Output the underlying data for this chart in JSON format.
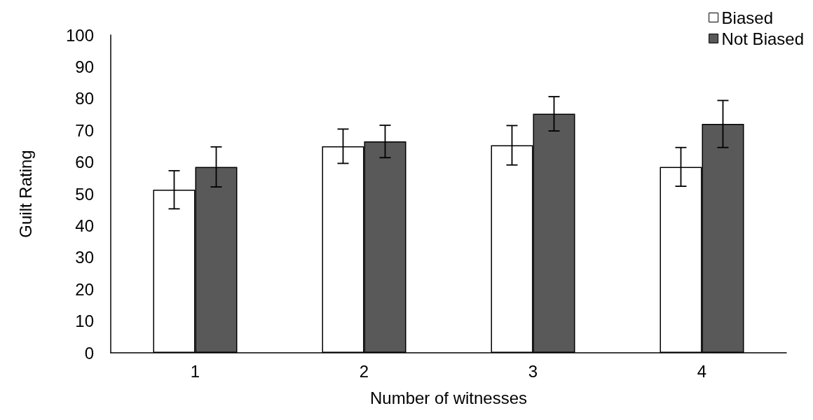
{
  "chart_data": {
    "type": "bar",
    "xlabel": "Number of witnesses",
    "ylabel": "Guilt Rating",
    "categories": [
      "1",
      "2",
      "3",
      "4"
    ],
    "series": [
      {
        "name": "Biased",
        "color": "#ffffff",
        "values": [
          51.3,
          65,
          65.3,
          58.5
        ],
        "errors": [
          6,
          5.4,
          6.2,
          6.1
        ]
      },
      {
        "name": "Not Biased",
        "color": "#595959",
        "values": [
          58.5,
          66.5,
          75.2,
          72
        ],
        "errors": [
          6.3,
          5.1,
          5.4,
          7.4
        ]
      }
    ],
    "ylim": [
      0,
      100
    ],
    "yticks": [
      0,
      10,
      20,
      30,
      40,
      50,
      60,
      70,
      80,
      90,
      100
    ],
    "grid": false,
    "legend": "top right"
  }
}
